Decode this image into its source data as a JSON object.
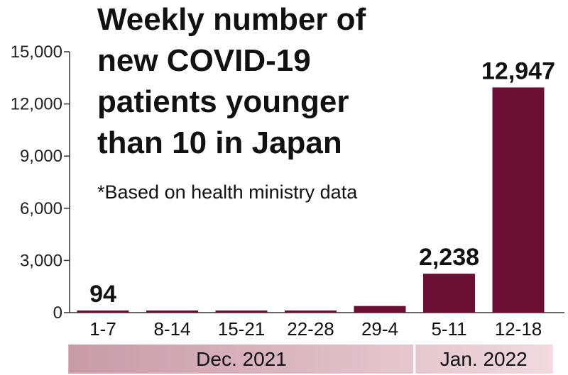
{
  "chart_data": {
    "type": "bar",
    "title_lines": [
      "Weekly number of",
      "new COVID-19",
      "patients younger",
      "than 10 in Japan"
    ],
    "note": "*Based on health ministry data",
    "categories": [
      "1-7",
      "8-14",
      "15-21",
      "22-28",
      "29-4",
      "5-11",
      "12-18"
    ],
    "values": [
      94,
      80,
      90,
      110,
      380,
      2238,
      12947
    ],
    "data_labels": [
      "94",
      "",
      "",
      "",
      "",
      "2,238",
      "12,947"
    ],
    "ylim": [
      0,
      15000
    ],
    "y_ticks": [
      0,
      3000,
      6000,
      9000,
      12000,
      15000
    ],
    "y_tick_labels": [
      "0",
      "3,000",
      "6,000",
      "9,000",
      "12,000",
      "15,000"
    ],
    "month_groups": [
      {
        "label": "Dec. 2021",
        "span": [
          0,
          4
        ]
      },
      {
        "label": "Jan. 2022",
        "span": [
          5,
          6
        ]
      }
    ],
    "bar_color": "#6b0f35",
    "axis_color": "#333333",
    "month_bar_colors": [
      "#c89aa6",
      "#f0dade"
    ],
    "grid": false,
    "xlabel": "",
    "ylabel": ""
  }
}
